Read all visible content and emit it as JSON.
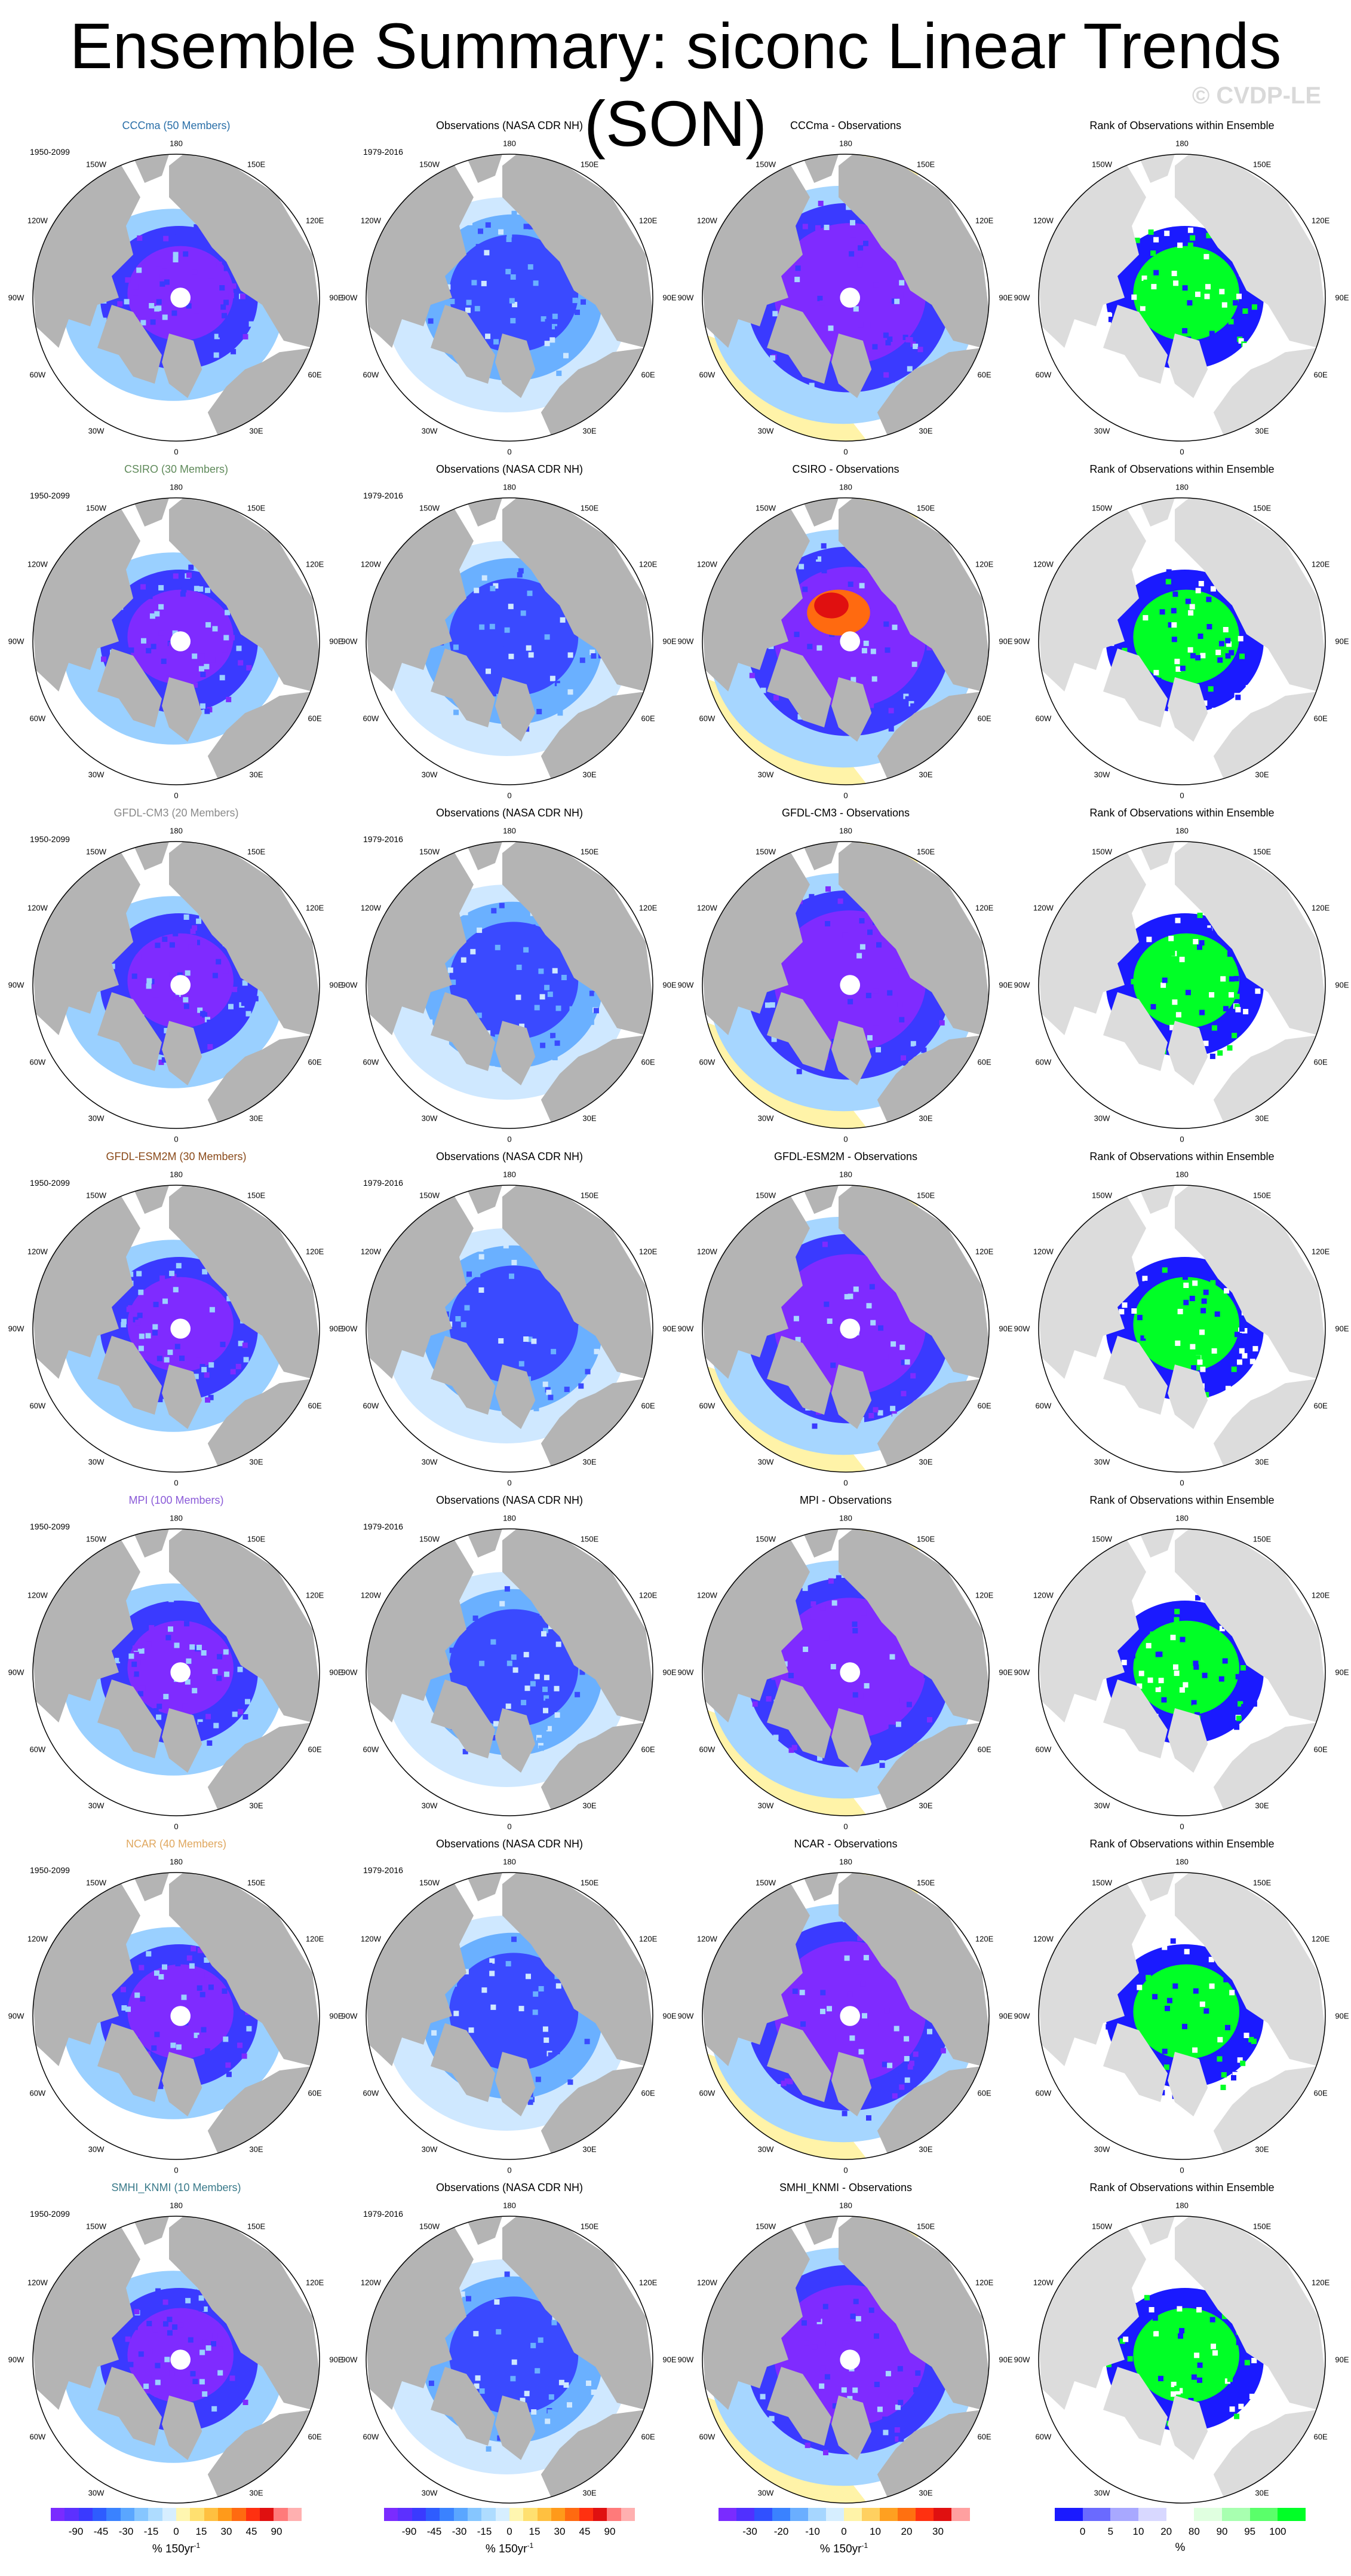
{
  "title": "Ensemble Summary: siconc Linear Trends (SON)",
  "watermark": "© CVDP-LE",
  "colors": {
    "land": "#b4b4b4",
    "rank_land": "#dcdcdc",
    "ocean": "#ffffff",
    "obs_yellow": "#fff3a8",
    "deep_purple": "#7f2bff",
    "rank_green": "#00ff26",
    "rank_blue": "#1a1aff"
  },
  "column_titles": {
    "observations": "Observations (NASA CDR NH)",
    "rank": "Rank of Observations within Ensemble"
  },
  "periods": {
    "model": "1950-2099",
    "observations": "1979-2016"
  },
  "longitude_labels": [
    "180",
    "150E",
    "120E",
    "90E",
    "60E",
    "30E",
    "0",
    "30W",
    "60W",
    "90W",
    "120W",
    "150W"
  ],
  "rows": [
    {
      "model_title": "CCCma (50 Members)",
      "model_color": "#2a6fa8",
      "diff_title": "CCCma - Observations"
    },
    {
      "model_title": "CSIRO (30 Members)",
      "model_color": "#5f8a5a",
      "diff_title": "CSIRO - Observations"
    },
    {
      "model_title": "GFDL-CM3 (20 Members)",
      "model_color": "#8a8a8a",
      "diff_title": "GFDL-CM3 - Observations"
    },
    {
      "model_title": "GFDL-ESM2M (30 Members)",
      "model_color": "#8a4a1a",
      "diff_title": "GFDL-ESM2M - Observations"
    },
    {
      "model_title": "MPI (100 Members)",
      "model_color": "#8a5ad8",
      "diff_title": "MPI - Observations"
    },
    {
      "model_title": "NCAR (40 Members)",
      "model_color": "#e0a860",
      "diff_title": "NCAR - Observations"
    },
    {
      "model_title": "SMHI_KNMI (10 Members)",
      "model_color": "#3a7a8a",
      "diff_title": "SMHI_KNMI - Observations"
    }
  ],
  "colorbars": [
    {
      "name": "model-trend",
      "ticks": [
        "-90",
        "-45",
        "-30",
        "-15",
        "0",
        "15",
        "30",
        "45",
        "90"
      ],
      "unit": "% 150yr",
      "unit_sup": "-1",
      "colors": [
        "#7a2bff",
        "#5c30ff",
        "#3a3aff",
        "#2e5cff",
        "#3a82ff",
        "#5aa6ff",
        "#86c6ff",
        "#aedcff",
        "#d6eeff",
        "#fff6b0",
        "#ffe070",
        "#ffc040",
        "#ff9a1a",
        "#ff6a10",
        "#ff3010",
        "#e01010",
        "#ff7a7a",
        "#ffb0b0"
      ]
    },
    {
      "name": "obs-trend",
      "ticks": [
        "-90",
        "-45",
        "-30",
        "-15",
        "0",
        "15",
        "30",
        "45",
        "90"
      ],
      "unit": "% 150yr",
      "unit_sup": "-1",
      "colors": [
        "#7a2bff",
        "#5c30ff",
        "#3a3aff",
        "#2e5cff",
        "#3a82ff",
        "#5aa6ff",
        "#86c6ff",
        "#aedcff",
        "#d6eeff",
        "#fff6b0",
        "#ffe070",
        "#ffc040",
        "#ff9a1a",
        "#ff6a10",
        "#ff3010",
        "#e01010",
        "#ff7a7a",
        "#ffb0b0"
      ]
    },
    {
      "name": "difference",
      "ticks": [
        "-30",
        "-20",
        "-10",
        "0",
        "10",
        "20",
        "30"
      ],
      "unit": "% 150yr",
      "unit_sup": "-1",
      "colors": [
        "#7a2bff",
        "#5030ff",
        "#3050ff",
        "#3a82ff",
        "#6aaeff",
        "#a6d6ff",
        "#d6eeff",
        "#fff3a8",
        "#ffd060",
        "#ffa020",
        "#ff7010",
        "#ff3010",
        "#e01010",
        "#ffa0a0"
      ]
    },
    {
      "name": "rank",
      "ticks": [
        "0",
        "5",
        "10",
        "20",
        "80",
        "90",
        "95",
        "100"
      ],
      "unit": "%",
      "unit_sup": "",
      "colors": [
        "#1a1aff",
        "#6a6aff",
        "#a8a8ff",
        "#d8d8ff",
        "#ffffff",
        "#e0ffe0",
        "#a8ffb0",
        "#5aff6a",
        "#00ff26"
      ]
    }
  ]
}
